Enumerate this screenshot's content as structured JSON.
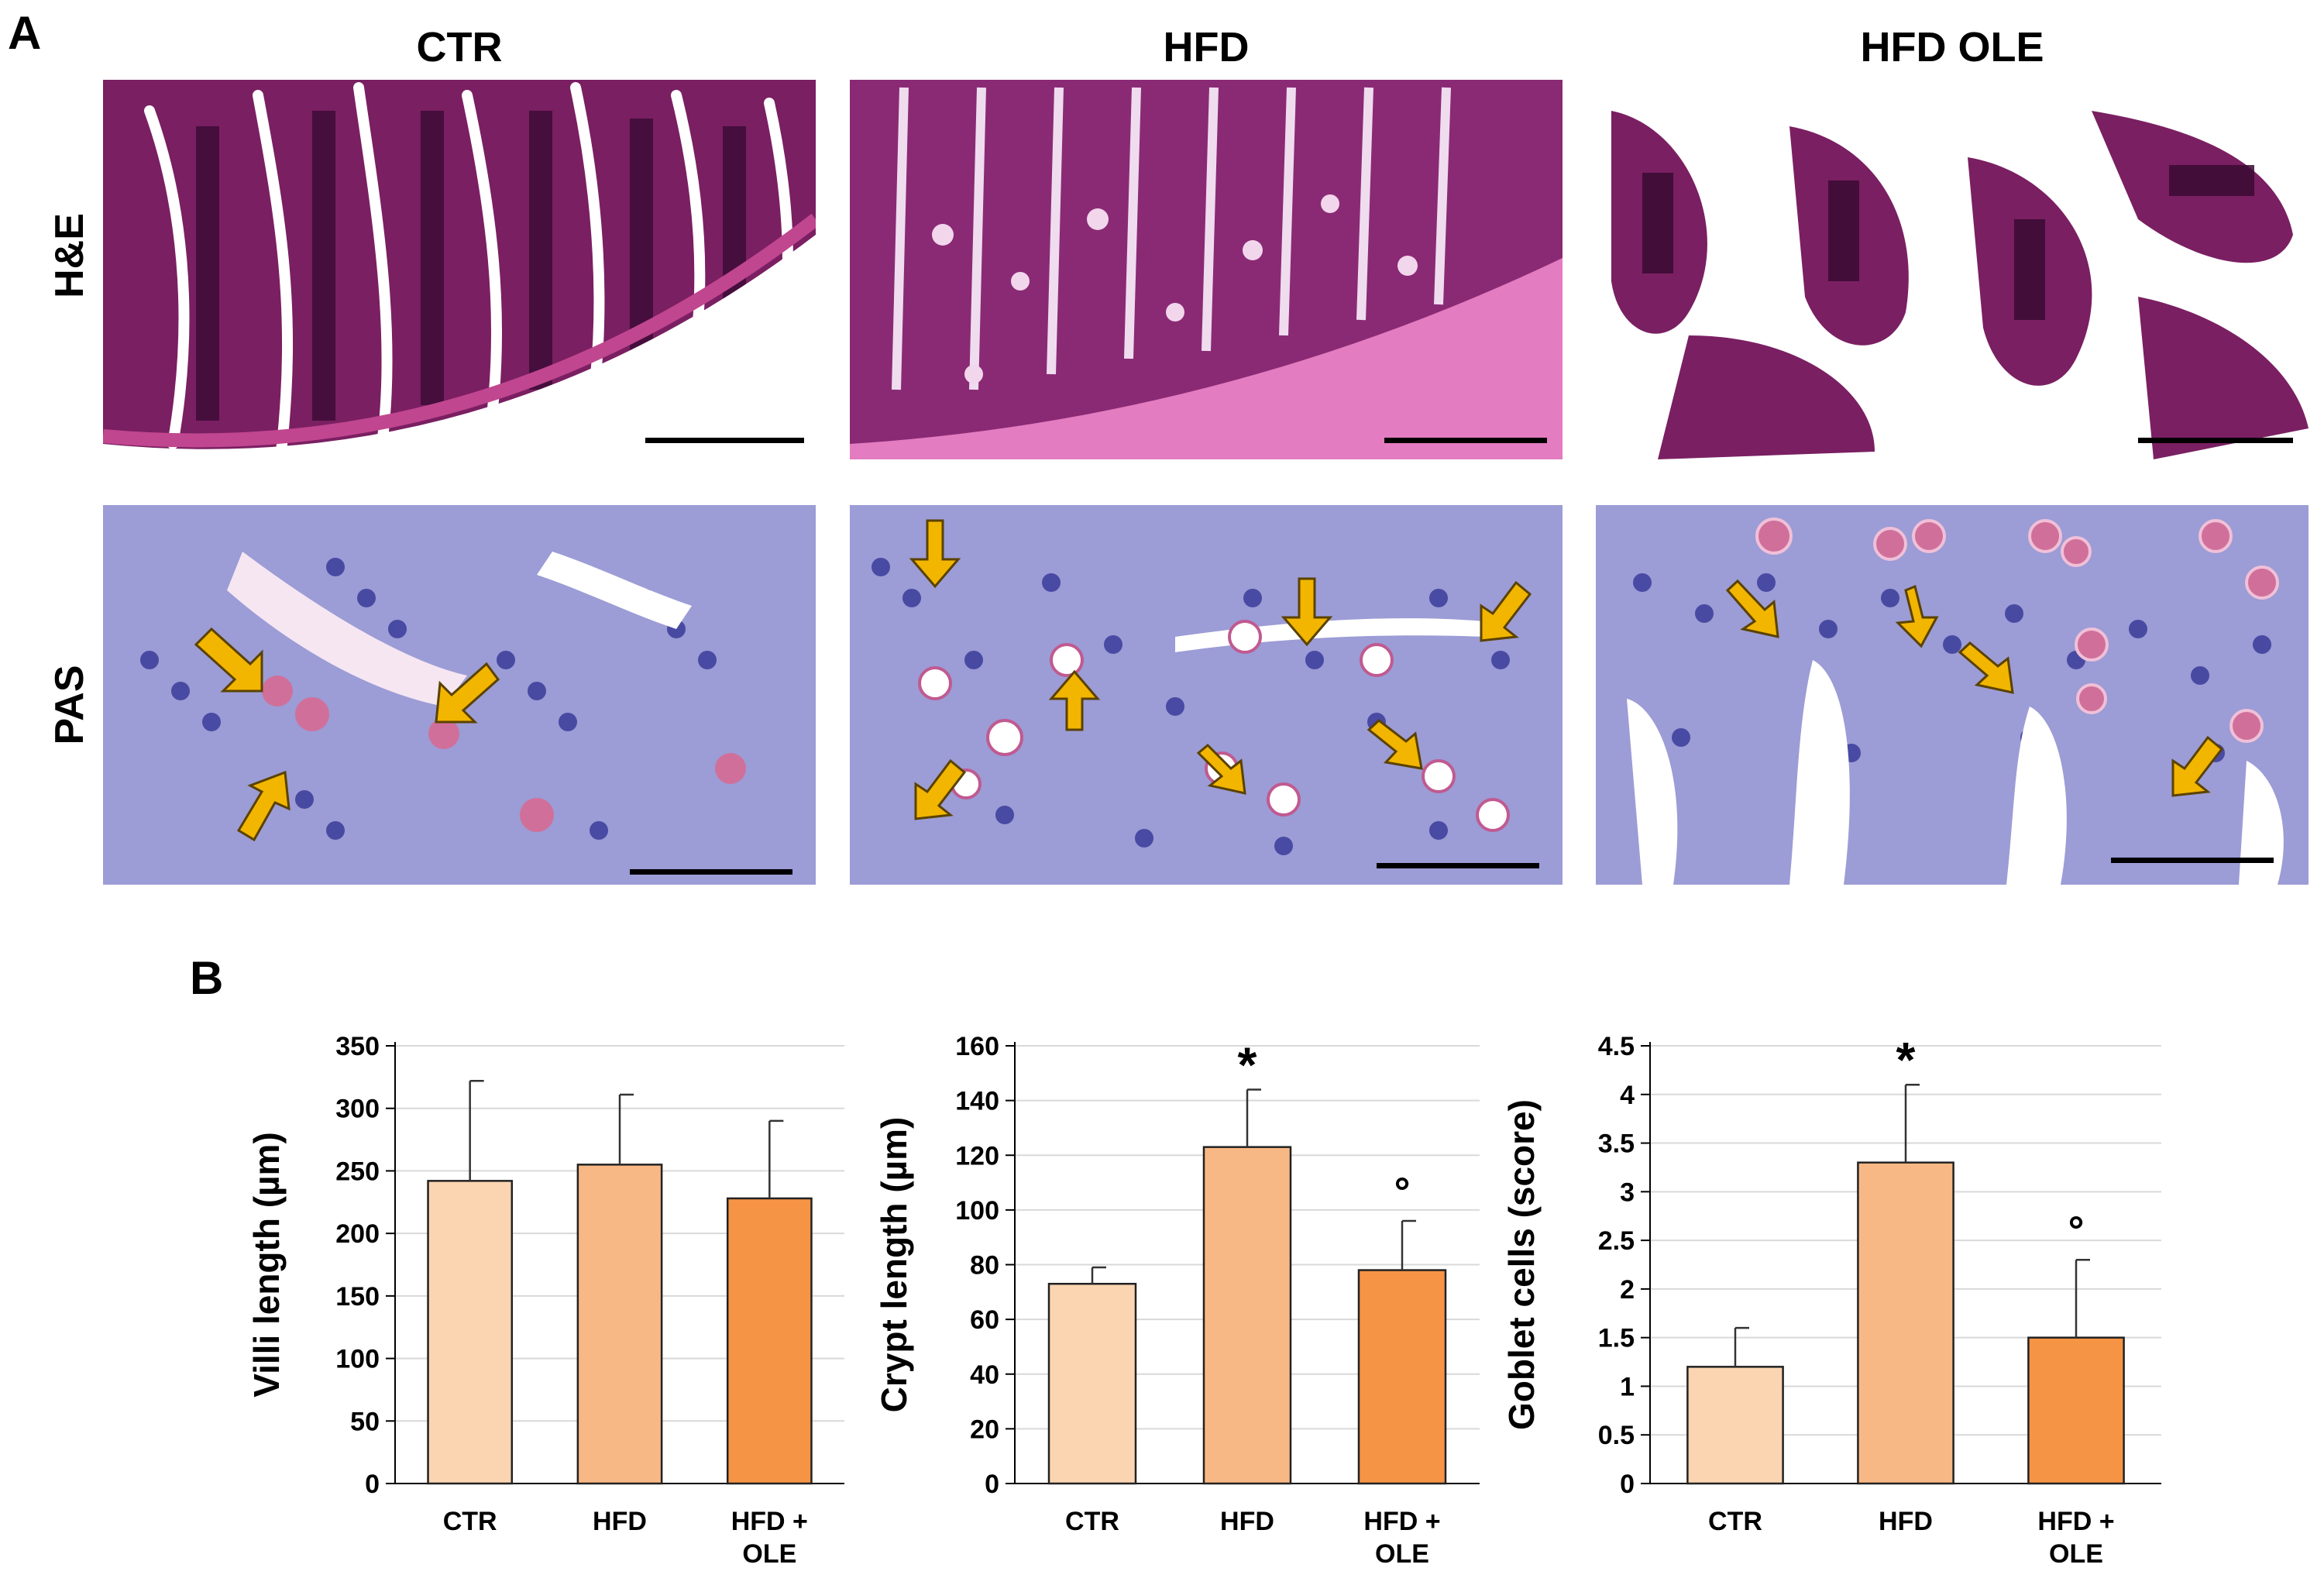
{
  "panel_a": {
    "letter": "A",
    "columns": [
      "CTR",
      "HFD",
      "HFD OLE"
    ],
    "rows": [
      "H&E",
      "PAS"
    ]
  },
  "panel_b": {
    "letter": "B"
  },
  "colors": {
    "he_background": "#7a1f62",
    "he_dark": "#3a0a33",
    "he_light": "#c0468f",
    "pas_background": "#8f8fd0",
    "pas_nucleus": "#3a3c9a",
    "pas_goblet": "#d0709a",
    "arrow": "#f2b500",
    "bar_ctr": "#fbd5b1",
    "bar_hfd": "#f8b885",
    "bar_ole": "#f59445"
  },
  "chart_data": [
    {
      "type": "bar",
      "categories": [
        "CTR",
        "HFD",
        "HFD + OLE"
      ],
      "values": [
        242,
        255,
        228
      ],
      "errors": [
        80,
        56,
        62
      ],
      "markers": [
        "",
        "",
        ""
      ],
      "ylabel": "Villi length (µm)",
      "ylim": [
        0,
        350
      ],
      "yticks": [
        "0",
        "50",
        "100",
        "150",
        "200",
        "250",
        "300",
        "350"
      ],
      "grid": true
    },
    {
      "type": "bar",
      "categories": [
        "CTR",
        "HFD",
        "HFD + OLE"
      ],
      "values": [
        73,
        123,
        78
      ],
      "errors": [
        6,
        21,
        18
      ],
      "markers": [
        "",
        "*",
        "°"
      ],
      "ylabel": "Crypt length (µm)",
      "ylim": [
        0,
        160
      ],
      "yticks": [
        "0",
        "20",
        "40",
        "60",
        "80",
        "100",
        "120",
        "140",
        "160"
      ],
      "grid": true
    },
    {
      "type": "bar",
      "categories": [
        "CTR",
        "HFD",
        "HFD + OLE"
      ],
      "values": [
        1.2,
        3.3,
        1.5
      ],
      "errors": [
        0.4,
        0.8,
        0.8
      ],
      "markers": [
        "",
        "*",
        "°"
      ],
      "ylabel": "Goblet cells (score)",
      "ylim": [
        0,
        4.5
      ],
      "yticks": [
        "0",
        "0.5",
        "1",
        "1.5",
        "2",
        "2.5",
        "3",
        "3.5",
        "4",
        "4.5"
      ],
      "grid": true
    }
  ]
}
